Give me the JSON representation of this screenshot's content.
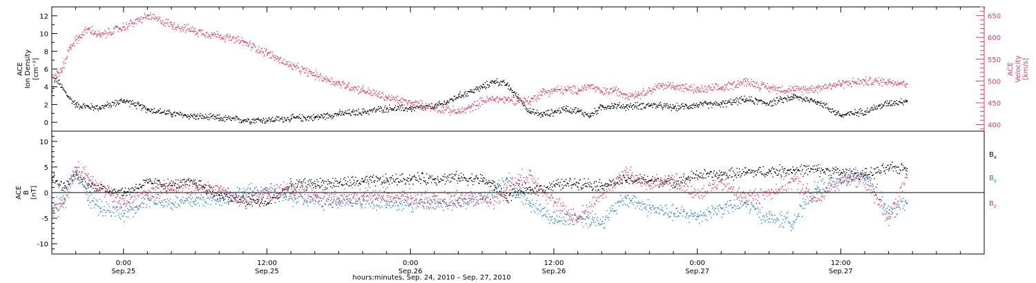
{
  "colors": {
    "ion_density": "#000000",
    "velocity": "#e8385f",
    "bx": "#000000",
    "by": "#1a7fe0",
    "bz": "#e8385f"
  },
  "chart_data": [
    {
      "type": "scatter",
      "panel": "plasma",
      "ylabel": [
        "ACE",
        "Ion Density",
        "[cm⁻³]"
      ],
      "ylabel_right": [
        "ACE",
        "Velocity",
        "[km/s]"
      ],
      "ylim": [
        -1,
        13
      ],
      "ylim_right": [
        385,
        670
      ],
      "yticks": [
        0,
        2,
        4,
        6,
        8,
        10,
        12
      ],
      "yticks_right": [
        400,
        450,
        500,
        550,
        600,
        650
      ],
      "grid": false,
      "series": [
        {
          "name": "Ion Density",
          "color": "#000000",
          "axis": "left",
          "x": [
            0,
            0.3,
            0.8,
            1.3,
            2,
            3,
            4,
            6,
            8,
            10,
            12,
            14,
            16,
            18,
            20,
            22,
            24,
            26,
            28,
            30,
            32,
            33,
            34,
            35,
            36,
            37,
            38,
            39,
            40,
            41,
            42,
            43,
            44,
            45,
            46,
            47,
            48,
            50,
            52,
            54,
            56,
            58,
            60,
            62,
            64,
            66,
            68,
            70,
            71.5
          ],
          "values": [
            3.5,
            5,
            4,
            3,
            2,
            1.8,
            1.7,
            2.5,
            1.5,
            1,
            0.7,
            0.5,
            0.3,
            0.3,
            0.5,
            0.6,
            1,
            1.2,
            1.6,
            1.6,
            1.8,
            2.3,
            3,
            3.5,
            4,
            4.7,
            4.3,
            2.8,
            1.2,
            0.9,
            1.2,
            1.6,
            1.3,
            0.8,
            1.8,
            1.9,
            1.8,
            2,
            1.7,
            2,
            2.1,
            2.6,
            2.2,
            2.9,
            2.4,
            0.8,
            1.3,
            2.2,
            2.5
          ]
        },
        {
          "name": "Velocity",
          "color": "#e8385f",
          "axis": "right",
          "x": [
            0,
            0.8,
            1.5,
            2.2,
            3,
            4,
            6,
            8,
            10,
            12,
            14,
            16,
            18,
            19,
            20,
            22,
            24,
            26,
            28,
            30,
            32,
            34,
            35,
            36,
            37,
            38,
            39,
            40,
            41,
            42,
            43,
            44,
            45,
            46,
            47,
            48,
            49,
            50,
            51,
            52,
            53,
            54,
            56,
            58,
            60,
            62,
            64,
            66,
            68,
            70,
            71.5
          ],
          "values": [
            510,
            525,
            580,
            600,
            620,
            605,
            625,
            650,
            630,
            615,
            605,
            590,
            565,
            550,
            535,
            515,
            495,
            480,
            463,
            450,
            440,
            430,
            440,
            455,
            460,
            458,
            458,
            455,
            475,
            480,
            480,
            480,
            490,
            475,
            480,
            470,
            470,
            480,
            490,
            490,
            485,
            480,
            485,
            500,
            485,
            480,
            485,
            495,
            500,
            500,
            495
          ]
        }
      ]
    },
    {
      "type": "scatter",
      "panel": "magnetic",
      "ylabel": [
        "ACE",
        "B",
        "[nT]"
      ],
      "ylim": [
        -12,
        12
      ],
      "yticks": [
        -10,
        -5,
        0,
        5,
        10
      ],
      "grid": false,
      "zero_line": true,
      "legend": [
        "Bx",
        "By",
        "Bz"
      ],
      "legend_position": "right",
      "series": [
        {
          "name": "Bx",
          "color": "#000000",
          "x": [
            0,
            1,
            2,
            3,
            4,
            6,
            8,
            10,
            12,
            14,
            16,
            18,
            20,
            22,
            24,
            26,
            28,
            30,
            32,
            34,
            36,
            37,
            38,
            39,
            40,
            42,
            44,
            46,
            48,
            50,
            52,
            54,
            56,
            58,
            60,
            62,
            64,
            66,
            68,
            70,
            71.5
          ],
          "values": [
            3,
            1,
            3.5,
            1.5,
            1,
            0,
            2,
            1.5,
            2,
            -0.5,
            -1.5,
            -2,
            1.5,
            1.8,
            2,
            2.2,
            2.5,
            2.8,
            2.8,
            3,
            2.6,
            1.5,
            -1,
            0.5,
            0.5,
            1.5,
            2,
            1.5,
            2.5,
            2.5,
            2,
            3.5,
            3.5,
            4,
            4.2,
            4.5,
            4.5,
            4,
            3.5,
            4.8,
            4.8
          ]
        },
        {
          "name": "By",
          "color": "#1a7fe0",
          "x": [
            0,
            1,
            2,
            3,
            4,
            6,
            8,
            10,
            12,
            14,
            16,
            18,
            20,
            22,
            24,
            26,
            28,
            30,
            32,
            34,
            36,
            37,
            38,
            39,
            40,
            42,
            44,
            46,
            48,
            50,
            52,
            54,
            56,
            58,
            60,
            62,
            64,
            66,
            68,
            70,
            71.5
          ],
          "values": [
            -3,
            -1,
            5,
            -1,
            -3,
            -4,
            -1,
            -2,
            -1.5,
            -1,
            0,
            0.5,
            -1,
            -1.5,
            -1.5,
            -1.5,
            -2,
            -2,
            -2,
            -2,
            -1,
            0.5,
            3,
            0,
            -2,
            -5,
            -5,
            -5.5,
            -1,
            -3,
            -4,
            -4.5,
            -3,
            -2,
            -5,
            -5.5,
            1,
            2,
            4,
            -4,
            -2
          ]
        },
        {
          "name": "Bz",
          "color": "#e8385f",
          "x": [
            0,
            1,
            2,
            3,
            4,
            6,
            8,
            10,
            12,
            14,
            16,
            18,
            20,
            22,
            24,
            26,
            28,
            30,
            32,
            34,
            36,
            37,
            38,
            39,
            40,
            42,
            44,
            46,
            48,
            50,
            52,
            54,
            56,
            58,
            60,
            62,
            64,
            66,
            68,
            70,
            71.5
          ],
          "values": [
            -4,
            -2,
            5,
            3,
            1,
            -2,
            0,
            1,
            1,
            0.5,
            -1.5,
            0,
            0.8,
            -0.5,
            -1,
            -0.5,
            -0.5,
            -1,
            -1.5,
            -1,
            -1,
            -1.5,
            1,
            2.5,
            3.5,
            -2,
            -5,
            0,
            4,
            1.5,
            2.5,
            0,
            2,
            -1,
            0,
            2.5,
            -1.5,
            3,
            2.5,
            -5,
            3
          ]
        }
      ]
    }
  ],
  "x_axis": {
    "ticks": [
      {
        "x": 6,
        "time": "0:00",
        "date": "Sep.25"
      },
      {
        "x": 18,
        "time": "12:00",
        "date": "Sep.25"
      },
      {
        "x": 30,
        "time": "0:00",
        "date": "Sep.26"
      },
      {
        "x": 42,
        "time": "12:00",
        "date": "Sep.26"
      },
      {
        "x": 54,
        "time": "0:00",
        "date": "Sep.27"
      },
      {
        "x": 66,
        "time": "12:00",
        "date": "Sep.27"
      }
    ],
    "xlim": [
      0,
      78
    ],
    "label": "hours:minutes, Sep. 24, 2010 – Sep. 27, 2010"
  }
}
